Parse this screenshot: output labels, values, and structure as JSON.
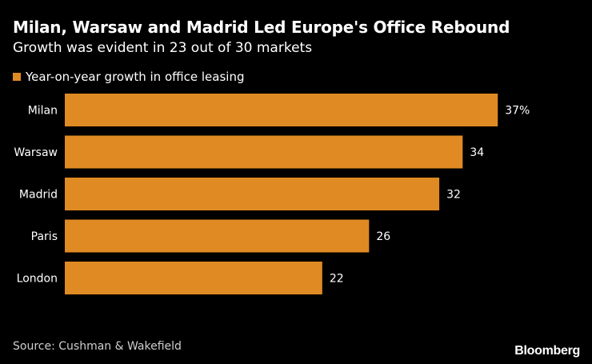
{
  "chart_data": {
    "type": "bar",
    "orientation": "horizontal",
    "title": "Milan, Warsaw and Madrid Led Europe's Office Rebound",
    "subtitle": "Growth was evident in 23 out of 30 markets",
    "categories": [
      "Milan",
      "Warsaw",
      "Madrid",
      "Paris",
      "London"
    ],
    "series": [
      {
        "name": "Year-on-year growth in office leasing",
        "values": [
          37,
          34,
          32,
          26,
          22
        ],
        "labels": [
          "37%",
          "34",
          "32",
          "26",
          "22"
        ],
        "color": "#E08A23"
      }
    ],
    "xlim": [
      0,
      43
    ],
    "xlabel": "",
    "ylabel": "",
    "grid": false,
    "legend_position": "top-left"
  },
  "footer": {
    "source": "Source: Cushman & Wakefield",
    "brand": "Bloomberg"
  },
  "colors": {
    "background": "#000000",
    "bar": "#E08A23",
    "text": "#FFFFFF"
  }
}
